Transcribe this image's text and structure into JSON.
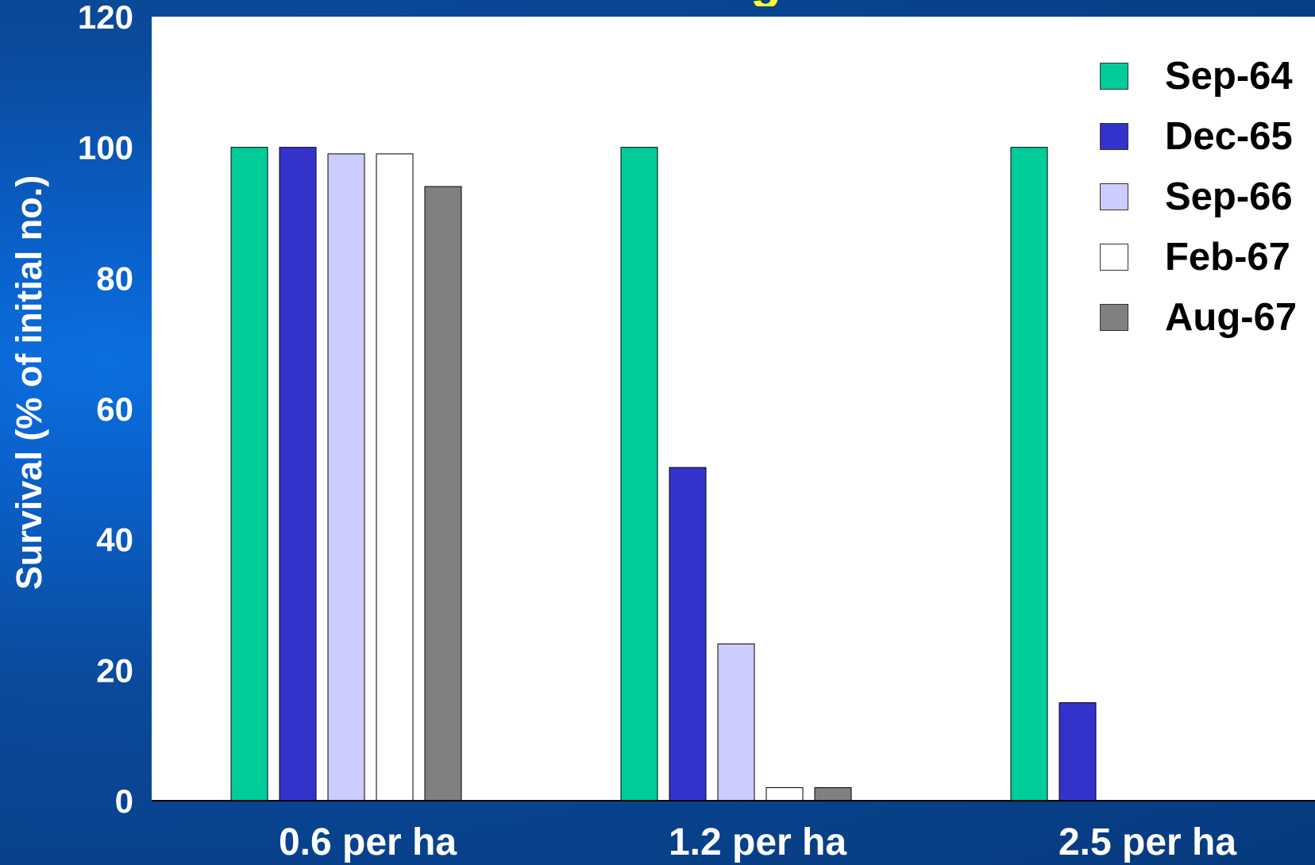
{
  "chart_data": {
    "type": "bar",
    "title": "",
    "xlabel": "",
    "ylabel": "Survival (% of initial no.)",
    "ylim": [
      0,
      120
    ],
    "yticks": [
      "0",
      "20",
      "40",
      "60",
      "80",
      "100",
      "120"
    ],
    "categories": [
      "0.6 per ha",
      "1.2 per ha",
      "2.5 per ha"
    ],
    "series": [
      {
        "name": "Sep-64",
        "color": "#00cc99",
        "values": [
          100,
          100,
          100
        ]
      },
      {
        "name": "Dec-65",
        "color": "#3333cc",
        "values": [
          100,
          51,
          15
        ]
      },
      {
        "name": "Sep-66",
        "color": "#ccccff",
        "values": [
          99,
          24,
          null
        ]
      },
      {
        "name": "Feb-67",
        "color": "#ffffff",
        "values": [
          99,
          2,
          null
        ]
      },
      {
        "name": "Aug-67",
        "color": "#808080",
        "values": [
          94,
          2,
          null
        ]
      }
    ],
    "legend_position": "top-right",
    "grid": false
  },
  "colors": {
    "background": "#0a4a9c",
    "plot_area": "#ffffff",
    "axis_text": "#ffffff",
    "legend_text": "#000000"
  }
}
